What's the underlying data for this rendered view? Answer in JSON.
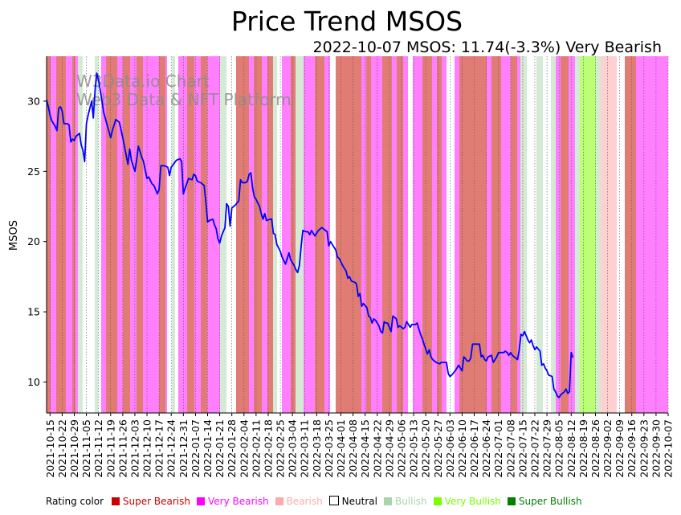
{
  "chart_data": {
    "type": "line",
    "title": "Price Trend MSOS",
    "subtitle": "2022-10-07 MSOS: 11.74(-3.3%) Very Bearish",
    "ylabel": "MSOS",
    "xlabel": "",
    "ylim": [
      7.8,
      33.2
    ],
    "yticks": [
      10,
      15,
      20,
      25,
      30
    ],
    "x_start": "2021-10-13",
    "x_end": "2022-10-07",
    "x_ticks": [
      "2021-10-15",
      "2021-10-22",
      "2021-10-29",
      "2021-11-05",
      "2021-11-12",
      "2021-11-19",
      "2021-11-26",
      "2021-12-03",
      "2021-12-10",
      "2021-12-17",
      "2021-12-24",
      "2021-12-31",
      "2022-01-07",
      "2022-01-14",
      "2022-01-21",
      "2022-01-28",
      "2022-02-04",
      "2022-02-11",
      "2022-02-18",
      "2022-02-25",
      "2022-03-04",
      "2022-03-11",
      "2022-03-18",
      "2022-03-25",
      "2022-04-01",
      "2022-04-08",
      "2022-04-15",
      "2022-04-22",
      "2022-04-29",
      "2022-05-06",
      "2022-05-13",
      "2022-05-20",
      "2022-05-27",
      "2022-06-03",
      "2022-06-10",
      "2022-06-17",
      "2022-06-24",
      "2022-07-01",
      "2022-07-08",
      "2022-07-15",
      "2022-07-22",
      "2022-07-29",
      "2022-08-05",
      "2022-08-12",
      "2022-08-19",
      "2022-08-26",
      "2022-09-02",
      "2022-09-09",
      "2022-09-16",
      "2022-09-23",
      "2022-09-30",
      "2022-10-07"
    ],
    "watermark": [
      "W3Data.io Chart",
      "Web3 Data & NFT Platform"
    ],
    "series": [
      {
        "name": "MSOS",
        "color": "#0000ff",
        "points": [
          [
            "2021-10-13",
            30.1
          ],
          [
            "2021-10-14",
            29.6
          ],
          [
            "2021-10-15",
            29.0
          ],
          [
            "2021-10-16",
            28.6
          ],
          [
            "2021-10-18",
            28.2
          ],
          [
            "2021-10-19",
            27.9
          ],
          [
            "2021-10-20",
            29.5
          ],
          [
            "2021-10-21",
            29.6
          ],
          [
            "2021-10-22",
            29.3
          ],
          [
            "2021-10-23",
            28.4
          ],
          [
            "2021-10-25",
            28.4
          ],
          [
            "2021-10-26",
            28.3
          ],
          [
            "2021-10-27",
            27.1
          ],
          [
            "2021-10-28",
            27.3
          ],
          [
            "2021-10-29",
            27.2
          ],
          [
            "2021-10-30",
            27.5
          ],
          [
            "2021-11-01",
            27.7
          ],
          [
            "2021-11-02",
            26.9
          ],
          [
            "2021-11-03",
            26.5
          ],
          [
            "2021-11-04",
            25.7
          ],
          [
            "2021-11-05",
            28.4
          ],
          [
            "2021-11-06",
            29.0
          ],
          [
            "2021-11-08",
            30.0
          ],
          [
            "2021-11-09",
            28.8
          ],
          [
            "2021-11-10",
            30.8
          ],
          [
            "2021-11-11",
            32.0
          ],
          [
            "2021-11-12",
            31.5
          ],
          [
            "2021-11-13",
            30.8
          ],
          [
            "2021-11-15",
            29.2
          ],
          [
            "2021-11-17",
            28.3
          ],
          [
            "2021-11-19",
            27.4
          ],
          [
            "2021-11-20",
            27.9
          ],
          [
            "2021-11-22",
            28.7
          ],
          [
            "2021-11-24",
            28.5
          ],
          [
            "2021-11-26",
            27.4
          ],
          [
            "2021-11-29",
            25.5
          ],
          [
            "2021-11-30",
            26.6
          ],
          [
            "2021-12-01",
            25.8
          ],
          [
            "2021-12-03",
            25.0
          ],
          [
            "2021-12-04",
            25.8
          ],
          [
            "2021-12-05",
            26.8
          ],
          [
            "2021-12-07",
            26.0
          ],
          [
            "2021-12-08",
            25.7
          ],
          [
            "2021-12-10",
            24.5
          ],
          [
            "2021-12-11",
            24.6
          ],
          [
            "2021-12-13",
            24.1
          ],
          [
            "2021-12-14",
            24.0
          ],
          [
            "2021-12-16",
            23.4
          ],
          [
            "2021-12-17",
            23.7
          ],
          [
            "2021-12-18",
            25.4
          ],
          [
            "2021-12-20",
            25.4
          ],
          [
            "2021-12-22",
            25.3
          ],
          [
            "2021-12-23",
            24.7
          ],
          [
            "2021-12-24",
            25.3
          ],
          [
            "2021-12-27",
            25.8
          ],
          [
            "2021-12-29",
            25.9
          ],
          [
            "2021-12-30",
            25.7
          ],
          [
            "2021-12-31",
            23.4
          ],
          [
            "2022-01-01",
            23.8
          ],
          [
            "2022-01-03",
            24.5
          ],
          [
            "2022-01-05",
            24.4
          ],
          [
            "2022-01-06",
            24.8
          ],
          [
            "2022-01-07",
            24.7
          ],
          [
            "2022-01-08",
            24.3
          ],
          [
            "2022-01-10",
            24.2
          ],
          [
            "2022-01-12",
            24.0
          ],
          [
            "2022-01-13",
            22.8
          ],
          [
            "2022-01-14",
            21.4
          ],
          [
            "2022-01-15",
            21.5
          ],
          [
            "2022-01-17",
            21.6
          ],
          [
            "2022-01-18",
            21.2
          ],
          [
            "2022-01-19",
            20.9
          ],
          [
            "2022-01-20",
            20.2
          ],
          [
            "2022-01-21",
            19.9
          ],
          [
            "2022-01-22",
            20.4
          ],
          [
            "2022-01-24",
            21.0
          ],
          [
            "2022-01-25",
            22.7
          ],
          [
            "2022-01-26",
            22.5
          ],
          [
            "2022-01-27",
            21.1
          ],
          [
            "2022-01-28",
            22.4
          ],
          [
            "2022-01-30",
            22.6
          ],
          [
            "2022-02-01",
            22.9
          ],
          [
            "2022-02-02",
            24.4
          ],
          [
            "2022-02-03",
            24.2
          ],
          [
            "2022-02-05",
            24.2
          ],
          [
            "2022-02-06",
            24.3
          ],
          [
            "2022-02-07",
            24.8
          ],
          [
            "2022-02-08",
            24.9
          ],
          [
            "2022-02-09",
            23.8
          ],
          [
            "2022-02-10",
            23.2
          ],
          [
            "2022-02-11",
            23.0
          ],
          [
            "2022-02-13",
            22.5
          ],
          [
            "2022-02-14",
            22.0
          ],
          [
            "2022-02-15",
            21.6
          ],
          [
            "2022-02-16",
            22.0
          ],
          [
            "2022-02-17",
            21.5
          ],
          [
            "2022-02-19",
            21.6
          ],
          [
            "2022-02-20",
            21.6
          ],
          [
            "2022-02-21",
            20.6
          ],
          [
            "2022-02-22",
            20.5
          ],
          [
            "2022-02-23",
            19.8
          ],
          [
            "2022-02-25",
            19.3
          ],
          [
            "2022-02-26",
            18.9
          ],
          [
            "2022-02-28",
            18.4
          ],
          [
            "2022-03-01",
            18.8
          ],
          [
            "2022-03-02",
            19.2
          ],
          [
            "2022-03-03",
            18.7
          ],
          [
            "2022-03-05",
            18.3
          ],
          [
            "2022-03-06",
            18.0
          ],
          [
            "2022-03-07",
            17.8
          ],
          [
            "2022-03-08",
            18.3
          ],
          [
            "2022-03-09",
            19.6
          ],
          [
            "2022-03-10",
            20.8
          ],
          [
            "2022-03-12",
            20.7
          ],
          [
            "2022-03-13",
            20.7
          ],
          [
            "2022-03-14",
            20.5
          ],
          [
            "2022-03-15",
            20.8
          ],
          [
            "2022-03-16",
            20.6
          ],
          [
            "2022-03-17",
            20.4
          ],
          [
            "2022-03-19",
            20.8
          ],
          [
            "2022-03-20",
            20.9
          ],
          [
            "2022-03-21",
            21.0
          ],
          [
            "2022-03-22",
            20.9
          ],
          [
            "2022-03-24",
            20.7
          ],
          [
            "2022-03-25",
            19.7
          ],
          [
            "2022-03-26",
            20.0
          ],
          [
            "2022-03-28",
            19.6
          ],
          [
            "2022-03-29",
            19.4
          ],
          [
            "2022-03-30",
            18.9
          ],
          [
            "2022-03-31",
            18.8
          ],
          [
            "2022-04-02",
            18.3
          ],
          [
            "2022-04-03",
            18.1
          ],
          [
            "2022-04-04",
            17.9
          ],
          [
            "2022-04-05",
            17.4
          ],
          [
            "2022-04-06",
            17.5
          ],
          [
            "2022-04-07",
            17.2
          ],
          [
            "2022-04-09",
            17.1
          ],
          [
            "2022-04-10",
            17.0
          ],
          [
            "2022-04-11",
            16.1
          ],
          [
            "2022-04-12",
            16.3
          ],
          [
            "2022-04-13",
            15.4
          ],
          [
            "2022-04-14",
            15.6
          ],
          [
            "2022-04-16",
            15.3
          ],
          [
            "2022-04-17",
            14.7
          ],
          [
            "2022-04-18",
            14.6
          ],
          [
            "2022-04-19",
            14.2
          ],
          [
            "2022-04-20",
            14.5
          ],
          [
            "2022-04-21",
            14.4
          ],
          [
            "2022-04-23",
            14.0
          ],
          [
            "2022-04-24",
            13.6
          ],
          [
            "2022-04-25",
            13.5
          ],
          [
            "2022-04-26",
            14.3
          ],
          [
            "2022-04-27",
            14.2
          ],
          [
            "2022-04-28",
            14.2
          ],
          [
            "2022-04-30",
            13.6
          ],
          [
            "2022-05-01",
            14.7
          ],
          [
            "2022-05-02",
            14.6
          ],
          [
            "2022-05-03",
            14.5
          ],
          [
            "2022-05-04",
            13.9
          ],
          [
            "2022-05-05",
            14.0
          ],
          [
            "2022-05-07",
            13.8
          ],
          [
            "2022-05-08",
            13.9
          ],
          [
            "2022-05-09",
            14.3
          ],
          [
            "2022-05-10",
            14.1
          ],
          [
            "2022-05-11",
            13.9
          ],
          [
            "2022-05-12",
            14.1
          ],
          [
            "2022-05-14",
            14.1
          ],
          [
            "2022-05-15",
            14.2
          ],
          [
            "2022-05-16",
            13.8
          ],
          [
            "2022-05-17",
            13.4
          ],
          [
            "2022-05-18",
            13.1
          ],
          [
            "2022-05-19",
            12.7
          ],
          [
            "2022-05-21",
            12.0
          ],
          [
            "2022-05-22",
            12.3
          ],
          [
            "2022-05-23",
            11.8
          ],
          [
            "2022-05-24",
            11.6
          ],
          [
            "2022-05-25",
            11.5
          ],
          [
            "2022-05-26",
            11.4
          ],
          [
            "2022-05-28",
            11.3
          ],
          [
            "2022-05-29",
            11.4
          ],
          [
            "2022-05-30",
            11.4
          ],
          [
            "2022-06-01",
            11.4
          ],
          [
            "2022-06-02",
            10.6
          ],
          [
            "2022-06-03",
            10.4
          ],
          [
            "2022-06-04",
            10.5
          ],
          [
            "2022-06-06",
            10.8
          ],
          [
            "2022-06-07",
            11.0
          ],
          [
            "2022-06-08",
            11.2
          ],
          [
            "2022-06-09",
            11.0
          ],
          [
            "2022-06-10",
            10.8
          ],
          [
            "2022-06-11",
            11.8
          ],
          [
            "2022-06-13",
            11.5
          ],
          [
            "2022-06-14",
            11.5
          ],
          [
            "2022-06-15",
            11.7
          ],
          [
            "2022-06-16",
            12.7
          ],
          [
            "2022-06-17",
            12.7
          ],
          [
            "2022-06-18",
            12.7
          ],
          [
            "2022-06-20",
            12.7
          ],
          [
            "2022-06-21",
            11.8
          ],
          [
            "2022-06-22",
            11.9
          ],
          [
            "2022-06-23",
            11.6
          ],
          [
            "2022-06-24",
            11.5
          ],
          [
            "2022-06-25",
            11.8
          ],
          [
            "2022-06-27",
            11.9
          ],
          [
            "2022-06-28",
            11.4
          ],
          [
            "2022-06-29",
            11.6
          ],
          [
            "2022-06-30",
            11.8
          ],
          [
            "2022-07-01",
            12.1
          ],
          [
            "2022-07-02",
            12.1
          ],
          [
            "2022-07-04",
            12.1
          ],
          [
            "2022-07-05",
            12.2
          ],
          [
            "2022-07-06",
            12.1
          ],
          [
            "2022-07-07",
            11.9
          ],
          [
            "2022-07-08",
            12.1
          ],
          [
            "2022-07-09",
            11.9
          ],
          [
            "2022-07-11",
            11.7
          ],
          [
            "2022-07-12",
            11.6
          ],
          [
            "2022-07-13",
            12.3
          ],
          [
            "2022-07-14",
            13.4
          ],
          [
            "2022-07-15",
            13.3
          ],
          [
            "2022-07-16",
            13.6
          ],
          [
            "2022-07-18",
            13.0
          ],
          [
            "2022-07-19",
            12.8
          ],
          [
            "2022-07-20",
            13.0
          ],
          [
            "2022-07-21",
            12.6
          ],
          [
            "2022-07-22",
            12.3
          ],
          [
            "2022-07-23",
            12.5
          ],
          [
            "2022-07-25",
            12.2
          ],
          [
            "2022-07-26",
            11.2
          ],
          [
            "2022-07-27",
            11.3
          ],
          [
            "2022-07-28",
            11.0
          ],
          [
            "2022-07-29",
            10.8
          ],
          [
            "2022-07-30",
            10.5
          ],
          [
            "2022-08-01",
            10.4
          ],
          [
            "2022-08-02",
            9.5
          ],
          [
            "2022-08-03",
            9.3
          ],
          [
            "2022-08-04",
            9.0
          ],
          [
            "2022-08-05",
            8.9
          ],
          [
            "2022-08-06",
            9.1
          ],
          [
            "2022-08-08",
            9.3
          ],
          [
            "2022-08-09",
            9.5
          ],
          [
            "2022-08-10",
            9.2
          ],
          [
            "2022-08-11",
            9.3
          ],
          [
            "2022-08-12",
            12.1
          ],
          [
            "2022-08-13",
            11.74
          ]
        ]
      }
    ],
    "legend": {
      "title": "Rating color",
      "items": [
        {
          "label": "Super Bearish",
          "color": "#cc0000"
        },
        {
          "label": "Very Bearish",
          "color": "#ff00ff"
        },
        {
          "label": "Bearish",
          "color": "#ffaaaa"
        },
        {
          "label": "Neutral",
          "color": "#ffffff"
        },
        {
          "label": "Bullish",
          "color": "#a9d4a9"
        },
        {
          "label": "Very Bullish",
          "color": "#77ff00"
        },
        {
          "label": "Super Bullish",
          "color": "#008000"
        }
      ]
    }
  }
}
